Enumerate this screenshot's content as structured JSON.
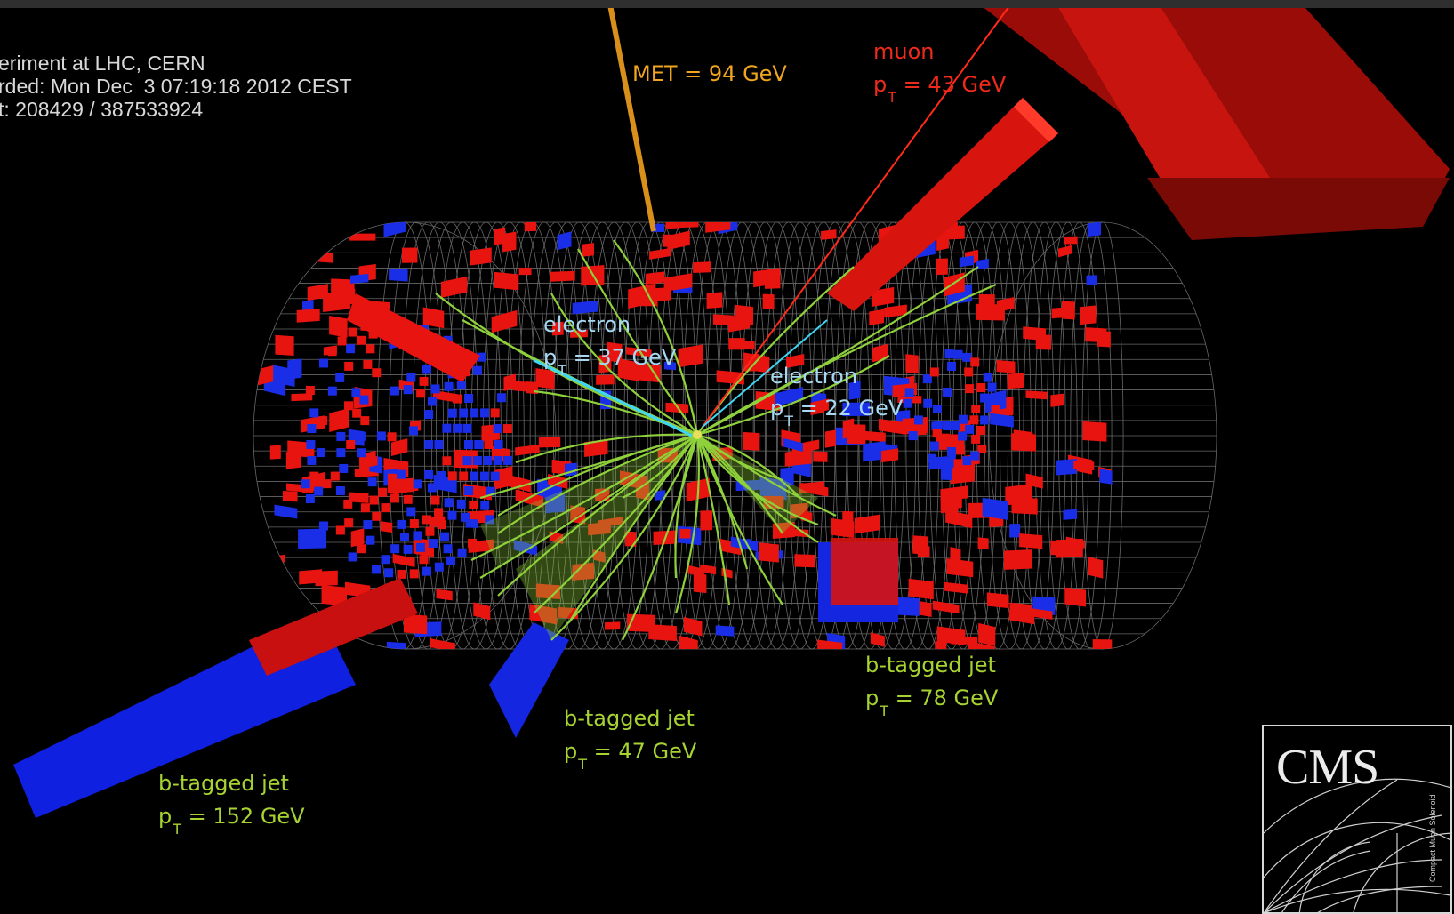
{
  "event_info": {
    "line1": "eriment at LHC, CERN",
    "line2": "rded: Mon Dec  3 07:19:18 2012 CEST",
    "line3": "t: 208429 / 387533924"
  },
  "labels": {
    "met": "MET = 94 GeV",
    "muon_name": "muon",
    "muon_pt_prefix": "p",
    "muon_pt_sub": "T",
    "muon_pt_value": " = 43 GeV",
    "electron1_name": "electron",
    "electron1_pt_prefix": "p",
    "electron1_pt_sub": "T",
    "electron1_pt_value": " = 37 GeV",
    "electron2_name": "electron",
    "electron2_pt_prefix": "p",
    "electron2_pt_sub": "T",
    "electron2_pt_value": " = 22 GeV",
    "jet1_name": "b-tagged jet",
    "jet1_pt_prefix": "p",
    "jet1_pt_sub": "T",
    "jet1_pt_value": " = 152 GeV",
    "jet2_name": "b-tagged jet",
    "jet2_pt_prefix": "p",
    "jet2_pt_sub": "T",
    "jet2_pt_value": " = 47 GeV",
    "jet3_name": "b-tagged jet",
    "jet3_pt_prefix": "p",
    "jet3_pt_sub": "T",
    "jet3_pt_value": " = 78 GeV"
  },
  "logo": {
    "title": "CMS",
    "subtitle": "Compact Muon Solenoid"
  },
  "colors": {
    "background": "#000000",
    "ecal": "#e8140f",
    "hcal": "#1a2ee8",
    "tracks": "#8fd13a",
    "electron": "#3fd6f5",
    "muon": "#ff2a1a",
    "met": "#e2951a",
    "grid": "#9a9a9a"
  },
  "icons": [
    "cms-logo-icon"
  ]
}
